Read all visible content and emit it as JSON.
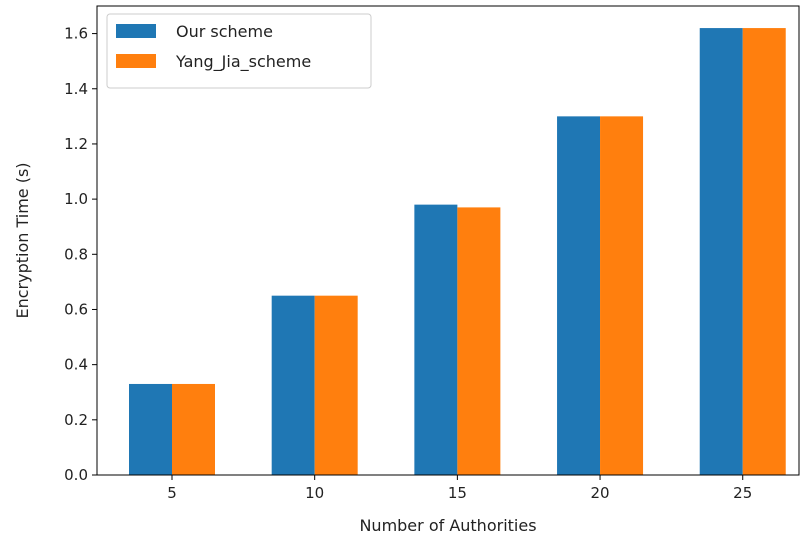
{
  "chart_data": {
    "type": "bar",
    "categories": [
      "5",
      "10",
      "15",
      "20",
      "25"
    ],
    "series": [
      {
        "name": "Our scheme",
        "color": "#1f77b4",
        "values": [
          0.33,
          0.65,
          0.98,
          1.3,
          1.62
        ]
      },
      {
        "name": "Yang_Jia_scheme",
        "color": "#ff7f0e",
        "values": [
          0.33,
          0.65,
          0.97,
          1.3,
          1.62
        ]
      }
    ],
    "title": "",
    "xlabel": "Number of Authorities",
    "ylabel": "Encryption Time (s)",
    "ylim": [
      0,
      1.7
    ],
    "yticks": [
      0.0,
      0.2,
      0.4,
      0.6,
      0.8,
      1.0,
      1.2,
      1.4,
      1.6
    ],
    "ytick_labels": [
      "0.0",
      "0.2",
      "0.4",
      "0.6",
      "0.8",
      "1.0",
      "1.2",
      "1.4",
      "1.6"
    ],
    "grid": false,
    "legend_position": "top-left"
  }
}
